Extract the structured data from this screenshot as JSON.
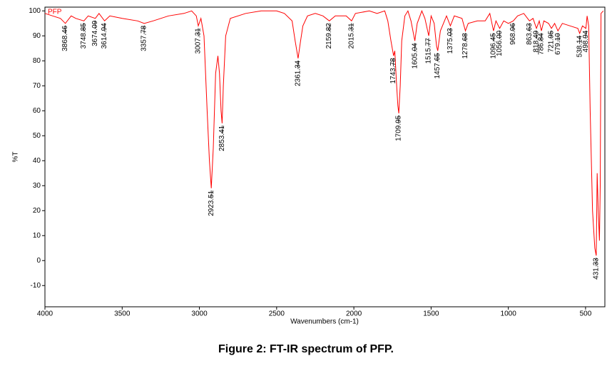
{
  "chart_data": {
    "type": "line",
    "x_label": "Wavenumbers (cm-1)",
    "y_label": "%T",
    "caption": "Figure 2: FT-IR spectrum of PFP.",
    "xlim": [
      4000,
      375
    ],
    "ylim": [
      -18.5,
      101.5
    ],
    "xticks": [
      4000,
      3500,
      3000,
      2500,
      2000,
      1500,
      1000,
      500
    ],
    "yticks": [
      -10,
      0,
      10,
      20,
      30,
      40,
      50,
      60,
      70,
      80,
      90,
      100
    ],
    "legend": "top-left",
    "series": [
      {
        "name": "PFP",
        "color": "#ff0000",
        "x": [
          4000,
          3950,
          3900,
          3868,
          3830,
          3800,
          3748,
          3720,
          3674,
          3650,
          3614,
          3580,
          3500,
          3400,
          3357,
          3300,
          3200,
          3100,
          3050,
          3020,
          3007,
          2990,
          2970,
          2950,
          2935,
          2923,
          2910,
          2895,
          2880,
          2870,
          2860,
          2853,
          2845,
          2830,
          2800,
          2700,
          2600,
          2500,
          2450,
          2400,
          2380,
          2361,
          2345,
          2330,
          2300,
          2250,
          2200,
          2159,
          2120,
          2050,
          2015,
          1990,
          1900,
          1850,
          1800,
          1780,
          1760,
          1743,
          1735,
          1725,
          1715,
          1709,
          1700,
          1690,
          1670,
          1650,
          1630,
          1605,
          1590,
          1560,
          1540,
          1515,
          1500,
          1480,
          1465,
          1457,
          1440,
          1400,
          1375,
          1350,
          1300,
          1278,
          1260,
          1200,
          1150,
          1120,
          1096,
          1080,
          1056,
          1030,
          1000,
          968,
          940,
          900,
          863,
          840,
          818,
          800,
          786,
          770,
          740,
          721,
          700,
          679,
          650,
          600,
          550,
          538,
          520,
          498,
          490,
          480,
          470,
          455,
          440,
          431,
          425,
          418,
          410,
          405,
          400,
          385
        ],
        "values": [
          99,
          98,
          97,
          95,
          98,
          97,
          96,
          98,
          97,
          99,
          96,
          98,
          97,
          96,
          95,
          96,
          98,
          99,
          100,
          98,
          94,
          97,
          90,
          60,
          40,
          29,
          45,
          75,
          82,
          75,
          60,
          55,
          70,
          90,
          97,
          99,
          100,
          100,
          99,
          96,
          88,
          81,
          88,
          94,
          98,
          99,
          98,
          96,
          98,
          98,
          96,
          99,
          100,
          99,
          100,
          96,
          88,
          82,
          84,
          72,
          62,
          59,
          70,
          88,
          98,
          100,
          96,
          88,
          95,
          100,
          97,
          90,
          98,
          95,
          86,
          84,
          92,
          98,
          94,
          98,
          97,
          92,
          95,
          96,
          96,
          99,
          92,
          96,
          93,
          96,
          95,
          96,
          98,
          99,
          96,
          97,
          93,
          96,
          92,
          96,
          95,
          93,
          95,
          92,
          95,
          94,
          93,
          91,
          94,
          93,
          98,
          94,
          60,
          20,
          5,
          2,
          35,
          20,
          8,
          30,
          99,
          100
        ]
      }
    ],
    "annotations": [
      {
        "text": "3868.46",
        "x": 3868.46,
        "y": 95
      },
      {
        "text": "3748.85",
        "x": 3748.85,
        "y": 96
      },
      {
        "text": "3674.09",
        "x": 3674.09,
        "y": 97
      },
      {
        "text": "3614.94",
        "x": 3614.94,
        "y": 96
      },
      {
        "text": "3357.78",
        "x": 3357.78,
        "y": 95
      },
      {
        "text": "3007.31",
        "x": 3007.31,
        "y": 94
      },
      {
        "text": "2923.51",
        "x": 2923.51,
        "y": 29
      },
      {
        "text": "2853.41",
        "x": 2853.41,
        "y": 55
      },
      {
        "text": "2361.34",
        "x": 2361.34,
        "y": 81
      },
      {
        "text": "2159.82",
        "x": 2159.82,
        "y": 96
      },
      {
        "text": "2015.31",
        "x": 2015.31,
        "y": 96
      },
      {
        "text": "1743.78",
        "x": 1743.78,
        "y": 82
      },
      {
        "text": "1709.95",
        "x": 1709.95,
        "y": 59
      },
      {
        "text": "1605.04",
        "x": 1605.04,
        "y": 88
      },
      {
        "text": "1515.77",
        "x": 1515.77,
        "y": 90
      },
      {
        "text": "1457.65",
        "x": 1457.65,
        "y": 84
      },
      {
        "text": "1375.03",
        "x": 1375.03,
        "y": 94
      },
      {
        "text": "1278.68",
        "x": 1278.68,
        "y": 92
      },
      {
        "text": "1096.45",
        "x": 1096.45,
        "y": 92
      },
      {
        "text": "1056.00",
        "x": 1056.0,
        "y": 93
      },
      {
        "text": "968.96",
        "x": 968.96,
        "y": 96
      },
      {
        "text": "863.63",
        "x": 863.63,
        "y": 96
      },
      {
        "text": "818.49",
        "x": 818.49,
        "y": 93
      },
      {
        "text": "786.84",
        "x": 786.84,
        "y": 92
      },
      {
        "text": "721.95",
        "x": 721.95,
        "y": 93
      },
      {
        "text": "679.10",
        "x": 679.1,
        "y": 92
      },
      {
        "text": "538.14",
        "x": 538.14,
        "y": 91
      },
      {
        "text": "498.94",
        "x": 498.94,
        "y": 93
      },
      {
        "text": "431.33",
        "x": 431.33,
        "y": 2
      }
    ]
  }
}
